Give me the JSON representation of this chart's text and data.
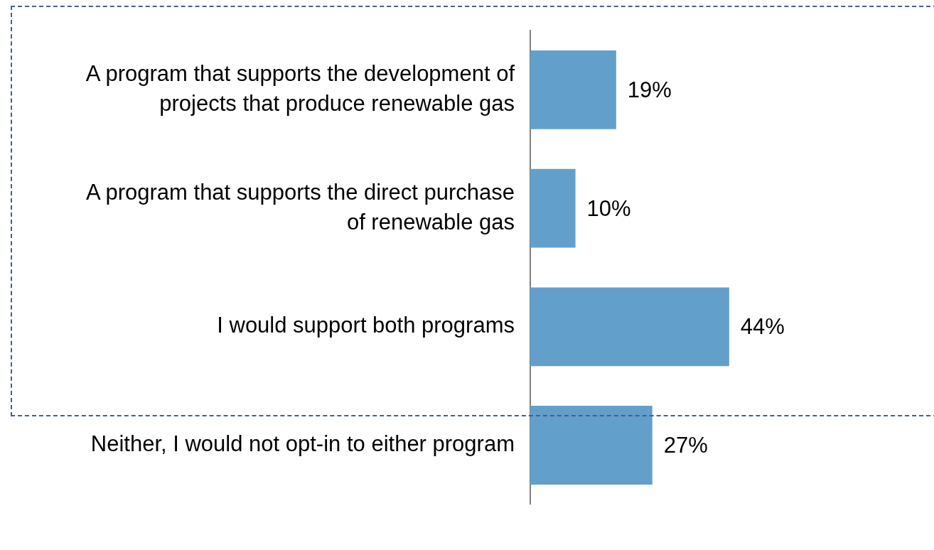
{
  "chart_data": {
    "type": "bar",
    "orientation": "horizontal",
    "categories": [
      "A program that supports the development of projects that produce renewable gas",
      "A program that supports the direct purchase of renewable gas",
      "I would support both programs",
      "Neither, I would not opt-in to either program"
    ],
    "values": [
      19,
      10,
      44,
      27
    ],
    "value_labels": [
      "19%",
      "10%",
      "44%",
      "27%"
    ],
    "color": "#639fcb"
  }
}
